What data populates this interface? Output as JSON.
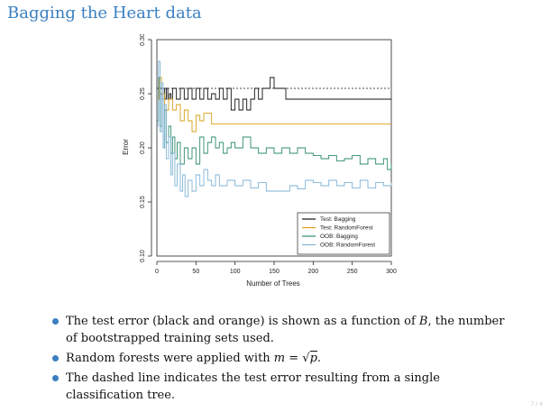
{
  "slide": {
    "title": "Bagging the Heart data",
    "page_number": "7 / 4"
  },
  "bullets": [
    {
      "before": "The test error (black and orange) is shown as a function of ",
      "math": "B",
      "after": ", the number of bootstrapped training sets used."
    },
    {
      "before": "Random forests were applied with ",
      "math_lhs": "m",
      "math_eq": " = ",
      "math_sqrt_symbol": "√",
      "math_rad": "p",
      "after": "."
    },
    {
      "before": "The dashed line indicates the test error resulting from a single classification tree."
    }
  ],
  "colors": {
    "test_bagging": "#111111",
    "test_randomforest": "#d9a015",
    "oob_bagging": "#2e8b6e",
    "oob_randomforest": "#7fb3d5",
    "title": "#3a7fc1"
  },
  "chart_data": {
    "type": "line",
    "xlabel": "Number of Trees",
    "ylabel": "Error",
    "xlim": [
      0,
      300
    ],
    "ylim": [
      0.1,
      0.3
    ],
    "xticks": [
      0,
      50,
      100,
      150,
      200,
      250,
      300
    ],
    "yticks": [
      0.1,
      0.15,
      0.2,
      0.25,
      0.3
    ],
    "reference_line": {
      "y": 0.255,
      "style": "dashed"
    },
    "legend_position": "bottom-right",
    "grid": false,
    "series": [
      {
        "name": "Test: Bagging",
        "color_key": "test_bagging",
        "points": [
          [
            0,
            0.245
          ],
          [
            2,
            0.265
          ],
          [
            4,
            0.25
          ],
          [
            6,
            0.245
          ],
          [
            8,
            0.255
          ],
          [
            10,
            0.245
          ],
          [
            12,
            0.255
          ],
          [
            14,
            0.245
          ],
          [
            16,
            0.25
          ],
          [
            18,
            0.245
          ],
          [
            20,
            0.255
          ],
          [
            25,
            0.245
          ],
          [
            30,
            0.255
          ],
          [
            35,
            0.245
          ],
          [
            40,
            0.255
          ],
          [
            45,
            0.245
          ],
          [
            50,
            0.255
          ],
          [
            55,
            0.245
          ],
          [
            60,
            0.255
          ],
          [
            65,
            0.245
          ],
          [
            70,
            0.25
          ],
          [
            75,
            0.245
          ],
          [
            80,
            0.255
          ],
          [
            85,
            0.245
          ],
          [
            90,
            0.255
          ],
          [
            95,
            0.235
          ],
          [
            100,
            0.245
          ],
          [
            105,
            0.235
          ],
          [
            110,
            0.245
          ],
          [
            115,
            0.235
          ],
          [
            120,
            0.245
          ],
          [
            125,
            0.255
          ],
          [
            130,
            0.245
          ],
          [
            135,
            0.255
          ],
          [
            140,
            0.255
          ],
          [
            145,
            0.265
          ],
          [
            150,
            0.255
          ],
          [
            155,
            0.255
          ],
          [
            160,
            0.255
          ],
          [
            165,
            0.245
          ],
          [
            175,
            0.245
          ],
          [
            200,
            0.245
          ],
          [
            250,
            0.245
          ],
          [
            300,
            0.245
          ]
        ]
      },
      {
        "name": "Test: RandomForest",
        "color_key": "test_randomforest",
        "points": [
          [
            0,
            0.245
          ],
          [
            3,
            0.265
          ],
          [
            6,
            0.25
          ],
          [
            10,
            0.235
          ],
          [
            15,
            0.245
          ],
          [
            20,
            0.235
          ],
          [
            25,
            0.24
          ],
          [
            30,
            0.225
          ],
          [
            35,
            0.235
          ],
          [
            40,
            0.225
          ],
          [
            45,
            0.215
          ],
          [
            50,
            0.23
          ],
          [
            55,
            0.225
          ],
          [
            60,
            0.232
          ],
          [
            65,
            0.232
          ],
          [
            70,
            0.222
          ],
          [
            100,
            0.222
          ],
          [
            150,
            0.222
          ],
          [
            200,
            0.222
          ],
          [
            250,
            0.222
          ],
          [
            300,
            0.222
          ]
        ]
      },
      {
        "name": "OOB: Bagging",
        "color_key": "oob_bagging",
        "points": [
          [
            0,
            0.225
          ],
          [
            2,
            0.265
          ],
          [
            4,
            0.22
          ],
          [
            6,
            0.245
          ],
          [
            8,
            0.2
          ],
          [
            10,
            0.235
          ],
          [
            12,
            0.205
          ],
          [
            15,
            0.22
          ],
          [
            18,
            0.195
          ],
          [
            20,
            0.21
          ],
          [
            23,
            0.19
          ],
          [
            26,
            0.205
          ],
          [
            30,
            0.185
          ],
          [
            35,
            0.2
          ],
          [
            40,
            0.19
          ],
          [
            45,
            0.2
          ],
          [
            50,
            0.185
          ],
          [
            55,
            0.21
          ],
          [
            60,
            0.195
          ],
          [
            65,
            0.205
          ],
          [
            70,
            0.21
          ],
          [
            75,
            0.2
          ],
          [
            80,
            0.205
          ],
          [
            85,
            0.195
          ],
          [
            90,
            0.2
          ],
          [
            95,
            0.205
          ],
          [
            100,
            0.2
          ],
          [
            110,
            0.21
          ],
          [
            120,
            0.2
          ],
          [
            130,
            0.195
          ],
          [
            140,
            0.2
          ],
          [
            150,
            0.195
          ],
          [
            160,
            0.2
          ],
          [
            170,
            0.195
          ],
          [
            180,
            0.2
          ],
          [
            190,
            0.195
          ],
          [
            200,
            0.193
          ],
          [
            210,
            0.19
          ],
          [
            220,
            0.193
          ],
          [
            230,
            0.188
          ],
          [
            240,
            0.19
          ],
          [
            250,
            0.193
          ],
          [
            260,
            0.185
          ],
          [
            270,
            0.19
          ],
          [
            280,
            0.185
          ],
          [
            290,
            0.19
          ],
          [
            295,
            0.18
          ],
          [
            300,
            0.185
          ]
        ]
      },
      {
        "name": "OOB: RandomForest",
        "color_key": "oob_randomforest",
        "points": [
          [
            0,
            0.22
          ],
          [
            2,
            0.28
          ],
          [
            4,
            0.215
          ],
          [
            6,
            0.26
          ],
          [
            8,
            0.2
          ],
          [
            10,
            0.24
          ],
          [
            12,
            0.19
          ],
          [
            15,
            0.21
          ],
          [
            18,
            0.175
          ],
          [
            20,
            0.195
          ],
          [
            23,
            0.165
          ],
          [
            26,
            0.185
          ],
          [
            30,
            0.16
          ],
          [
            33,
            0.175
          ],
          [
            36,
            0.155
          ],
          [
            40,
            0.17
          ],
          [
            45,
            0.16
          ],
          [
            50,
            0.175
          ],
          [
            55,
            0.165
          ],
          [
            60,
            0.18
          ],
          [
            65,
            0.17
          ],
          [
            70,
            0.165
          ],
          [
            75,
            0.175
          ],
          [
            80,
            0.165
          ],
          [
            90,
            0.17
          ],
          [
            100,
            0.165
          ],
          [
            110,
            0.17
          ],
          [
            120,
            0.163
          ],
          [
            130,
            0.168
          ],
          [
            140,
            0.16
          ],
          [
            150,
            0.16
          ],
          [
            160,
            0.16
          ],
          [
            170,
            0.165
          ],
          [
            180,
            0.162
          ],
          [
            190,
            0.17
          ],
          [
            200,
            0.168
          ],
          [
            210,
            0.165
          ],
          [
            220,
            0.17
          ],
          [
            230,
            0.165
          ],
          [
            240,
            0.168
          ],
          [
            250,
            0.163
          ],
          [
            260,
            0.17
          ],
          [
            270,
            0.163
          ],
          [
            280,
            0.168
          ],
          [
            290,
            0.165
          ],
          [
            300,
            0.168
          ]
        ]
      }
    ]
  }
}
